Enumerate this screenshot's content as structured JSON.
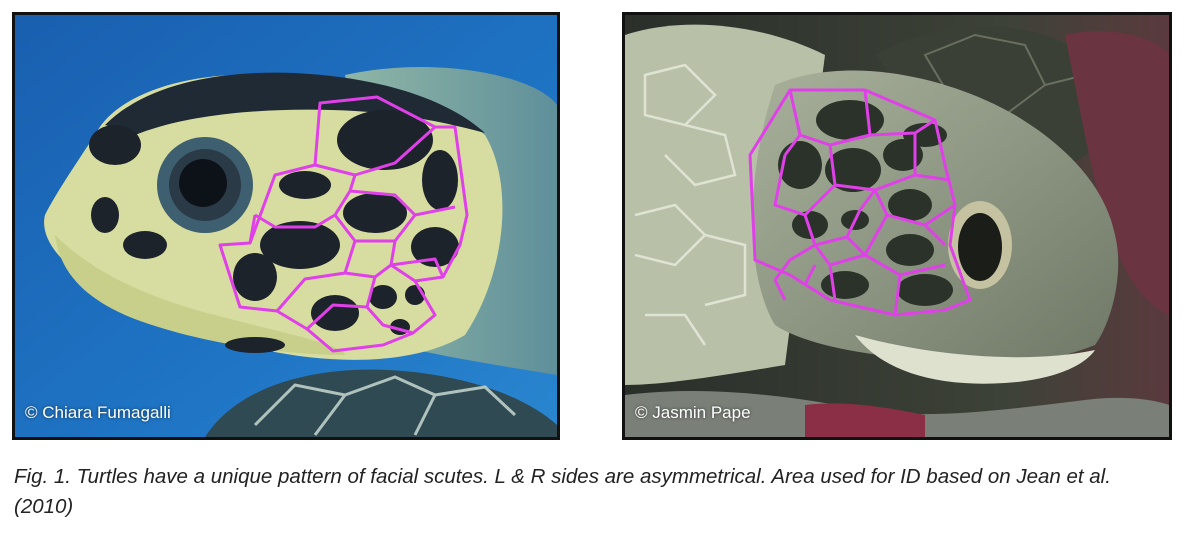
{
  "figure": {
    "left_photo": {
      "credit": "© Chiara Fumagalli",
      "depicts": "hawksbill-turtle-head-left-profile"
    },
    "right_photo": {
      "credit": "© Jasmin Pape",
      "depicts": "green-turtle-head-right-profile"
    },
    "caption": "Fig. 1. Turtles have a unique pattern of facial scutes. L & R sides are asymmetrical. Area used for ID based on Jean et al. (2010)"
  },
  "colors": {
    "scute_outline": "#e040e8",
    "frame": "#111111",
    "caption_text": "#222222"
  }
}
